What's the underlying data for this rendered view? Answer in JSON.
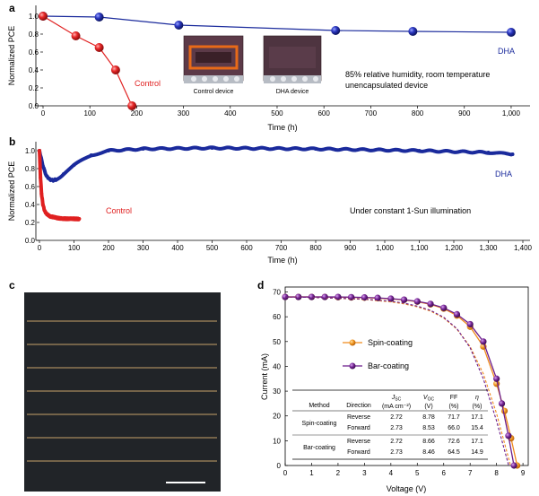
{
  "panels": {
    "a": {
      "label": "a"
    },
    "b": {
      "label": "b"
    },
    "c": {
      "label": "c"
    },
    "d": {
      "label": "d"
    }
  },
  "chart_data": [
    {
      "panel": "a",
      "type": "line",
      "xlabel": "Time (h)",
      "ylabel": "Normalized PCE",
      "xlim": [
        0,
        1025
      ],
      "ylim": [
        0,
        1.1
      ],
      "xticks": [
        0,
        100,
        200,
        300,
        400,
        500,
        600,
        700,
        800,
        900,
        "1,000"
      ],
      "yticks": [
        "0.0",
        "0.2",
        "0.4",
        "0.6",
        "0.8",
        "1.0"
      ],
      "series": [
        {
          "name": "DHA",
          "color": "#1a2a9c",
          "x": [
            0,
            120,
            290,
            625,
            790,
            1000
          ],
          "y": [
            1.0,
            0.99,
            0.9,
            0.84,
            0.83,
            0.82
          ]
        },
        {
          "name": "Control",
          "color": "#e02020",
          "x": [
            0,
            70,
            120,
            155,
            190
          ],
          "y": [
            1.0,
            0.78,
            0.65,
            0.4,
            0.0
          ]
        }
      ],
      "annotations": [
        "85% relative humidity, room temperature",
        "unencapsulated device"
      ],
      "inset_captions": [
        "Control device",
        "DHA device"
      ]
    },
    {
      "panel": "b",
      "type": "line",
      "xlabel": "Time (h)",
      "ylabel": "Normalized PCE",
      "xlim": [
        0,
        1400
      ],
      "ylim": [
        0,
        1.1
      ],
      "xticks": [
        0,
        100,
        200,
        300,
        400,
        500,
        600,
        700,
        800,
        900,
        "1,000",
        "1,100",
        "1,200",
        "1,300",
        "1,400"
      ],
      "yticks": [
        "0.0",
        "0.2",
        "0.4",
        "0.6",
        "0.8",
        "1.0"
      ],
      "series": [
        {
          "name": "DHA",
          "color": "#1a2a9c",
          "x": [
            0,
            10,
            20,
            30,
            40,
            50,
            70,
            100,
            150,
            200,
            300,
            500,
            800,
            1100,
            1300,
            1370
          ],
          "y": [
            1.0,
            0.83,
            0.72,
            0.68,
            0.67,
            0.68,
            0.74,
            0.84,
            0.95,
            1.0,
            1.02,
            1.03,
            1.02,
            1.0,
            0.98,
            0.96
          ]
        },
        {
          "name": "Control",
          "color": "#e02020",
          "x": [
            0,
            3,
            6,
            10,
            15,
            20,
            30,
            50,
            80,
            115
          ],
          "y": [
            1.0,
            0.7,
            0.52,
            0.4,
            0.33,
            0.3,
            0.27,
            0.25,
            0.24,
            0.24
          ]
        }
      ],
      "annotations": [
        "Under constant 1-Sun illumination"
      ]
    },
    {
      "panel": "d",
      "type": "line",
      "xlabel": "Voltage (V)",
      "ylabel": "Current (mA)",
      "xlim": [
        0,
        9.2
      ],
      "ylim": [
        0,
        72
      ],
      "xticks": [
        0,
        1,
        2,
        3,
        4,
        5,
        6,
        7,
        8,
        9
      ],
      "yticks": [
        0,
        10,
        20,
        30,
        40,
        50,
        60,
        70
      ],
      "series": [
        {
          "name": "Spin-coating",
          "color": "#f08a1c",
          "marker": true,
          "x": [
            0,
            0.5,
            1,
            1.5,
            2,
            2.5,
            3,
            3.5,
            4,
            4.5,
            5,
            5.5,
            6,
            6.5,
            7,
            7.5,
            8,
            8.3,
            8.55,
            8.78
          ],
          "y": [
            68,
            68,
            68,
            68,
            67.9,
            67.8,
            67.7,
            67.5,
            67.2,
            66.8,
            66.1,
            65,
            63.3,
            60.5,
            56,
            48,
            33,
            22,
            11,
            0
          ]
        },
        {
          "name": "Bar-coating",
          "color": "#6a1b8a",
          "marker": true,
          "x": [
            0,
            0.5,
            1,
            1.5,
            2,
            2.5,
            3,
            3.5,
            4,
            4.5,
            5,
            5.5,
            6,
            6.5,
            7,
            7.5,
            8,
            8.2,
            8.45,
            8.66
          ],
          "y": [
            68,
            68,
            68,
            68,
            68,
            67.9,
            67.8,
            67.6,
            67.3,
            66.9,
            66.2,
            65.2,
            63.6,
            61,
            57,
            50,
            35,
            25,
            12,
            0
          ]
        },
        {
          "name": "",
          "color": "#f08a1c",
          "dashed": true,
          "x": [
            0,
            1,
            2,
            3,
            4,
            4.5,
            5,
            5.5,
            6,
            6.5,
            7,
            7.5,
            8,
            8.53
          ],
          "y": [
            68,
            67.8,
            67.4,
            67,
            66,
            65.2,
            64,
            62.3,
            59.5,
            55,
            48,
            37,
            21,
            0
          ]
        },
        {
          "name": "",
          "color": "#6a1b8a",
          "dashed": true,
          "x": [
            0,
            1,
            2,
            3,
            4,
            4.5,
            5,
            5.5,
            6,
            6.5,
            7,
            7.5,
            8,
            8.46
          ],
          "y": [
            68,
            67.8,
            67.5,
            67.1,
            66.3,
            65.5,
            64.3,
            62.6,
            59.8,
            55.2,
            47.5,
            35,
            18,
            0
          ]
        }
      ]
    }
  ],
  "table": {
    "headers": [
      {
        "main": "Method",
        "sub": ""
      },
      {
        "main": "Direction",
        "sub": ""
      },
      {
        "main": "JSC",
        "sub": "(mA cm⁻²)"
      },
      {
        "main": "VOC",
        "sub": "(V)"
      },
      {
        "main": "FF",
        "sub": "(%)"
      },
      {
        "main": "η",
        "sub": "(%)"
      }
    ],
    "groups": [
      {
        "method": "Spin-coating",
        "rows": [
          {
            "direction": "Reverse",
            "jsc": "2.72",
            "voc": "8.78",
            "ff": "71.7",
            "eta": "17.1"
          },
          {
            "direction": "Forward",
            "jsc": "2.73",
            "voc": "8.53",
            "ff": "66.0",
            "eta": "15.4"
          }
        ]
      },
      {
        "method": "Bar-coating",
        "rows": [
          {
            "direction": "Reverse",
            "jsc": "2.72",
            "voc": "8.66",
            "ff": "72.6",
            "eta": "17.1"
          },
          {
            "direction": "Forward",
            "jsc": "2.73",
            "voc": "8.46",
            "ff": "64.5",
            "eta": "14.9"
          }
        ]
      }
    ]
  }
}
